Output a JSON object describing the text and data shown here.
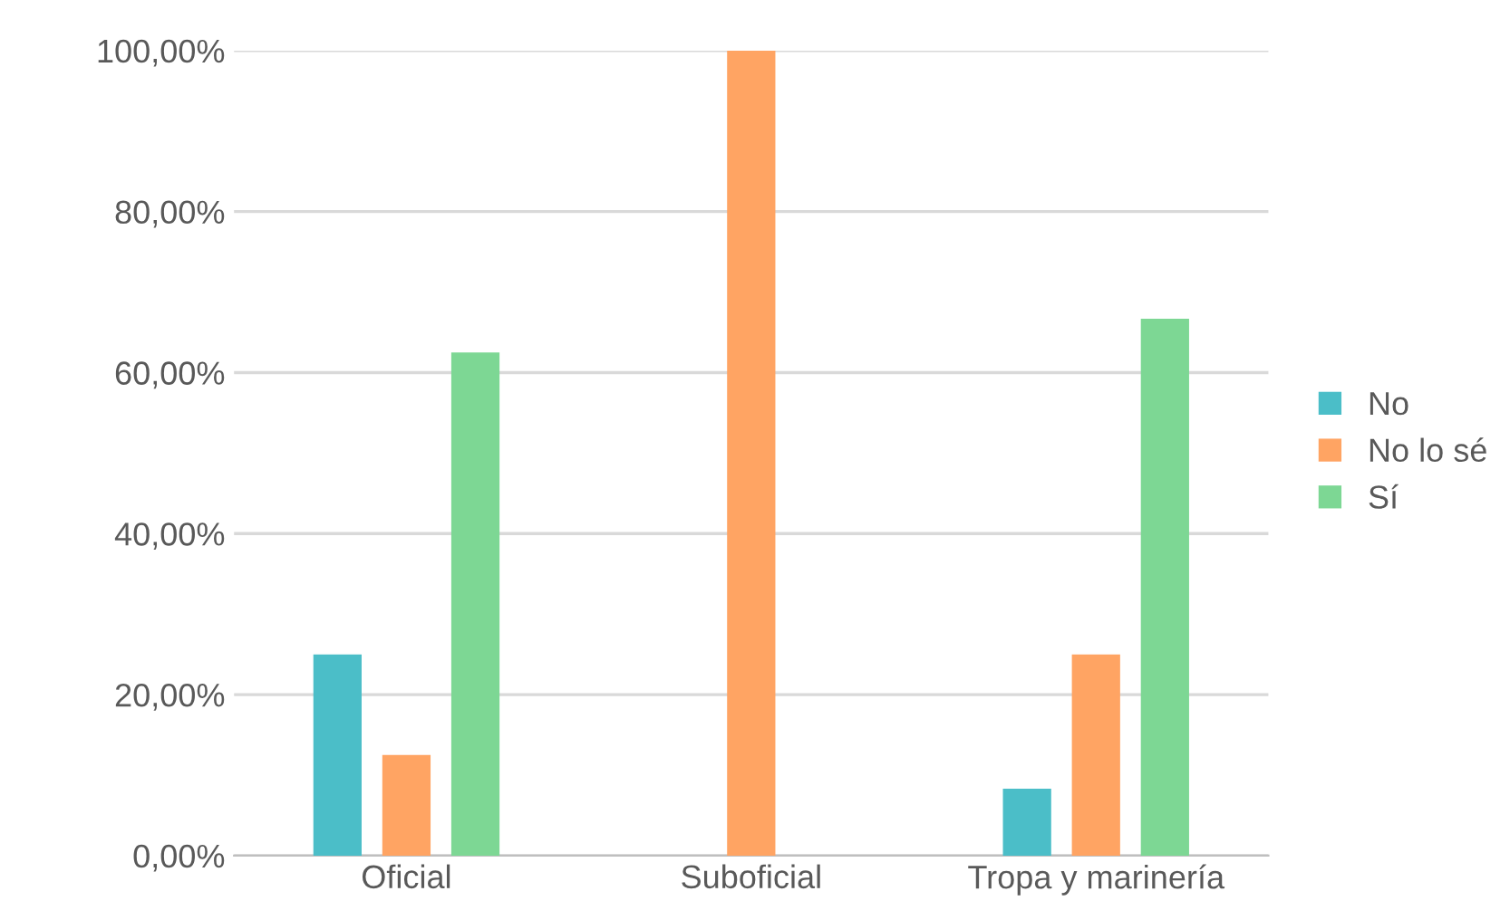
{
  "chart_data": {
    "type": "bar",
    "categories": [
      "Oficial",
      "Suboficial",
      "Tropa y marinería"
    ],
    "series": [
      {
        "name": "No",
        "color": "#4bbec8",
        "values": [
          25,
          null,
          8.3
        ]
      },
      {
        "name": "No lo sé",
        "color": "#ffa463",
        "values": [
          12.5,
          100,
          25
        ]
      },
      {
        "name": "Sí",
        "color": "#7dd794",
        "values": [
          62.5,
          null,
          66.7
        ]
      }
    ],
    "ylim": [
      0,
      100
    ],
    "yticks": [
      {
        "value": 0,
        "label": "0,00%"
      },
      {
        "value": 20,
        "label": "20,00%"
      },
      {
        "value": 40,
        "label": "40,00%"
      },
      {
        "value": 60,
        "label": "60,00%"
      },
      {
        "value": 80,
        "label": "80,00%"
      },
      {
        "value": 100,
        "label": "100,00%"
      }
    ],
    "grid": "y",
    "legend": "right"
  }
}
